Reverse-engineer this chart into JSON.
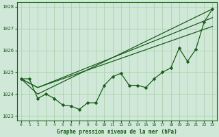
{
  "title": "Graphe pression niveau de la mer (hPa)",
  "bg_color": "#d0e8d8",
  "line_color": "#1a5c1a",
  "grid_color": "#a8cca8",
  "xlim": [
    -0.5,
    23.5
  ],
  "ylim": [
    1022.8,
    1028.2
  ],
  "yticks": [
    1023,
    1024,
    1025,
    1026,
    1027,
    1028
  ],
  "xticks": [
    0,
    1,
    2,
    3,
    4,
    5,
    6,
    7,
    8,
    9,
    10,
    11,
    12,
    13,
    14,
    15,
    16,
    17,
    18,
    19,
    20,
    21,
    22,
    23
  ],
  "line1_x": [
    0,
    1,
    2,
    3,
    4,
    5,
    6,
    7,
    8,
    9,
    10,
    11,
    12,
    13,
    14,
    15,
    16,
    17,
    18,
    19,
    20,
    21,
    22,
    23
  ],
  "line1_y": [
    1024.7,
    1024.7,
    1023.8,
    1024.0,
    1023.8,
    1023.5,
    1023.45,
    1023.3,
    1023.6,
    1023.6,
    1024.4,
    1024.8,
    1024.95,
    1024.4,
    1024.4,
    1024.3,
    1024.7,
    1025.0,
    1025.2,
    1026.1,
    1025.5,
    1026.05,
    1027.3,
    1027.9
  ],
  "line2_x": [
    0,
    2,
    23
  ],
  "line2_y": [
    1024.7,
    1024.3,
    1027.1
  ],
  "line3_x": [
    0,
    2,
    23
  ],
  "line3_y": [
    1024.7,
    1024.3,
    1027.5
  ],
  "line4_x": [
    0,
    2,
    23
  ],
  "line4_y": [
    1024.7,
    1024.0,
    1027.9
  ],
  "linewidth": 0.9,
  "markersize": 2.5
}
